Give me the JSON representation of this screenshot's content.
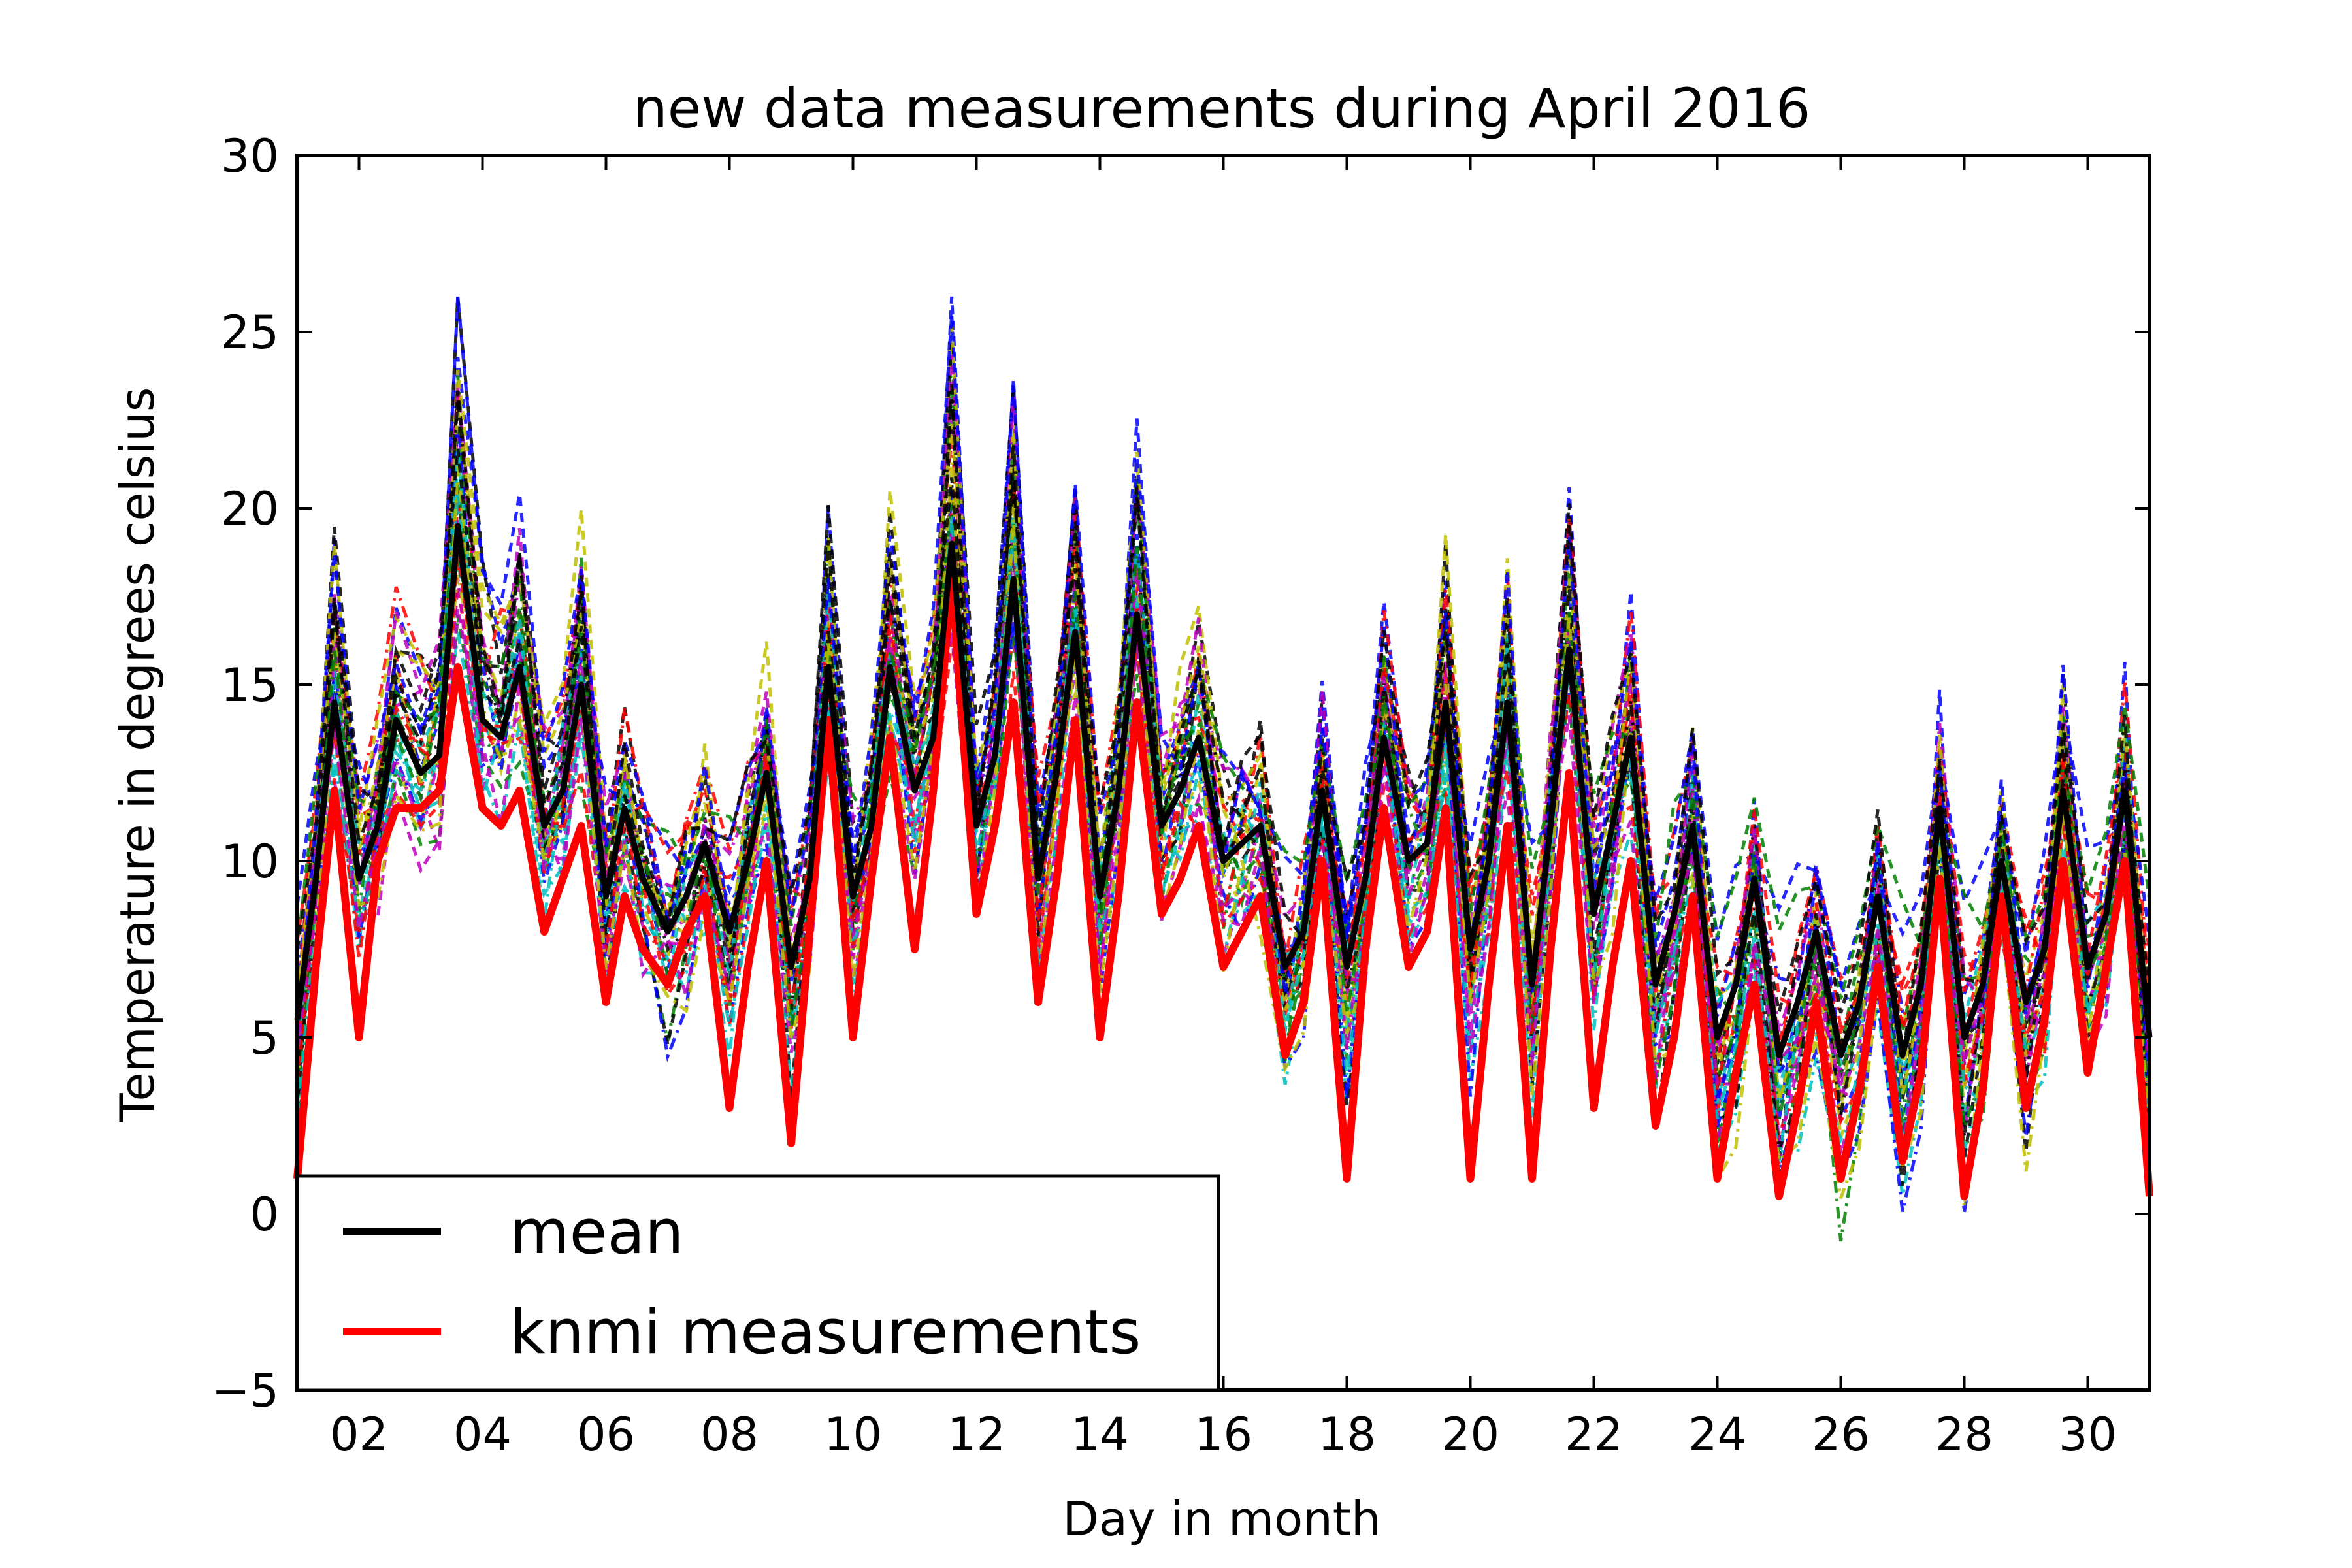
{
  "chart_data": {
    "type": "line",
    "title": "new data measurements during April 2016",
    "xlabel": "Day in month",
    "ylabel": "Temperature in degrees celsius",
    "xlim": [
      1,
      31
    ],
    "ylim": [
      -5,
      30
    ],
    "x_ticks": [
      2,
      4,
      6,
      8,
      10,
      12,
      14,
      16,
      18,
      20,
      22,
      24,
      26,
      28,
      30
    ],
    "x_tick_labels": [
      "02",
      "04",
      "06",
      "08",
      "10",
      "12",
      "14",
      "16",
      "18",
      "20",
      "22",
      "24",
      "26",
      "28",
      "30"
    ],
    "y_ticks": [
      -5,
      0,
      5,
      10,
      15,
      20,
      25,
      30
    ],
    "y_tick_labels": [
      "−5",
      "0",
      "5",
      "10",
      "15",
      "20",
      "25",
      "30"
    ],
    "grid": false,
    "legend": {
      "position": "lower-left",
      "entries": [
        {
          "label": "mean",
          "color": "#000000"
        },
        {
          "label": "knmi measurements",
          "color": "#ff0000"
        }
      ]
    },
    "series": [
      {
        "name": "mean",
        "color": "#000000",
        "style": "solid",
        "x": [
          1.0,
          1.3,
          1.6,
          2.0,
          2.3,
          2.6,
          3.0,
          3.3,
          3.6,
          4.0,
          4.3,
          4.6,
          5.0,
          5.3,
          5.6,
          6.0,
          6.3,
          6.6,
          7.0,
          7.3,
          7.6,
          8.0,
          8.3,
          8.6,
          9.0,
          9.3,
          9.6,
          10.0,
          10.3,
          10.6,
          11.0,
          11.3,
          11.6,
          12.0,
          12.3,
          12.6,
          13.0,
          13.3,
          13.6,
          14.0,
          14.3,
          14.6,
          15.0,
          15.3,
          15.6,
          16.0,
          16.3,
          16.6,
          17.0,
          17.3,
          17.6,
          18.0,
          18.3,
          18.6,
          19.0,
          19.3,
          19.6,
          20.0,
          20.3,
          20.6,
          21.0,
          21.3,
          21.6,
          22.0,
          22.3,
          22.6,
          23.0,
          23.3,
          23.6,
          24.0,
          24.3,
          24.6,
          25.0,
          25.3,
          25.6,
          26.0,
          26.3,
          26.6,
          27.0,
          27.3,
          27.6,
          28.0,
          28.3,
          28.6,
          29.0,
          29.3,
          29.6,
          30.0,
          30.3,
          30.6,
          31.0
        ],
        "y": [
          5.5,
          9.5,
          14.5,
          9.5,
          11.0,
          14.0,
          12.5,
          13.0,
          19.5,
          14.0,
          13.5,
          15.5,
          11.0,
          12.0,
          15.0,
          9.0,
          11.5,
          9.5,
          8.0,
          9.0,
          10.5,
          8.0,
          10.0,
          12.5,
          7.0,
          9.5,
          15.5,
          9.0,
          11.0,
          15.5,
          12.0,
          13.5,
          19.0,
          11.0,
          13.0,
          18.0,
          9.5,
          12.5,
          16.5,
          9.0,
          12.0,
          17.0,
          11.0,
          12.0,
          13.5,
          10.0,
          10.5,
          11.0,
          7.0,
          8.0,
          12.0,
          7.0,
          9.5,
          13.5,
          10.0,
          10.5,
          14.5,
          7.5,
          10.0,
          14.5,
          6.5,
          11.0,
          16.0,
          8.5,
          11.0,
          13.5,
          6.5,
          8.5,
          11.0,
          5.0,
          6.5,
          9.5,
          4.5,
          6.0,
          8.0,
          4.5,
          6.0,
          9.0,
          4.5,
          6.5,
          11.5,
          5.0,
          6.5,
          10.0,
          6.0,
          7.5,
          12.0,
          7.0,
          8.5,
          12.0,
          5.0
        ]
      },
      {
        "name": "knmi measurements",
        "color": "#ff0000",
        "style": "solid",
        "x": [
          1.0,
          1.3,
          1.6,
          2.0,
          2.3,
          2.6,
          3.0,
          3.3,
          3.6,
          4.0,
          4.3,
          4.6,
          5.0,
          5.3,
          5.6,
          6.0,
          6.3,
          6.6,
          7.0,
          7.3,
          7.6,
          8.0,
          8.3,
          8.6,
          9.0,
          9.3,
          9.6,
          10.0,
          10.3,
          10.6,
          11.0,
          11.3,
          11.6,
          12.0,
          12.3,
          12.6,
          13.0,
          13.3,
          13.6,
          14.0,
          14.3,
          14.6,
          15.0,
          15.3,
          15.6,
          16.0,
          16.3,
          16.6,
          17.0,
          17.3,
          17.6,
          18.0,
          18.3,
          18.6,
          19.0,
          19.3,
          19.6,
          20.0,
          20.3,
          20.6,
          21.0,
          21.3,
          21.6,
          22.0,
          22.3,
          22.6,
          23.0,
          23.3,
          23.6,
          24.0,
          24.3,
          24.6,
          25.0,
          25.3,
          25.6,
          26.0,
          26.3,
          26.6,
          27.0,
          27.3,
          27.6,
          28.0,
          28.3,
          28.6,
          29.0,
          29.3,
          29.6,
          30.0,
          30.3,
          30.6,
          31.0
        ],
        "y": [
          1.0,
          7.0,
          12.0,
          5.0,
          10.0,
          11.5,
          11.5,
          12.0,
          15.5,
          11.5,
          11.0,
          12.0,
          8.0,
          9.5,
          11.0,
          6.0,
          9.0,
          7.5,
          6.5,
          8.0,
          9.0,
          3.0,
          7.0,
          10.0,
          2.0,
          8.0,
          14.0,
          5.0,
          9.5,
          13.5,
          7.5,
          12.0,
          18.0,
          8.5,
          11.0,
          14.5,
          6.0,
          9.5,
          14.0,
          5.0,
          9.0,
          14.5,
          8.5,
          9.5,
          11.0,
          7.0,
          8.0,
          9.0,
          4.5,
          6.0,
          10.0,
          1.0,
          7.5,
          11.5,
          7.0,
          8.0,
          11.5,
          1.0,
          6.5,
          11.0,
          1.0,
          7.5,
          12.5,
          3.0,
          7.0,
          10.0,
          2.5,
          5.0,
          9.0,
          1.0,
          4.0,
          6.5,
          0.5,
          3.0,
          6.0,
          1.0,
          3.5,
          7.0,
          1.5,
          4.0,
          9.5,
          0.5,
          3.5,
          9.0,
          3.0,
          5.5,
          10.0,
          4.0,
          7.0,
          10.0,
          0.5
        ]
      }
    ]
  }
}
